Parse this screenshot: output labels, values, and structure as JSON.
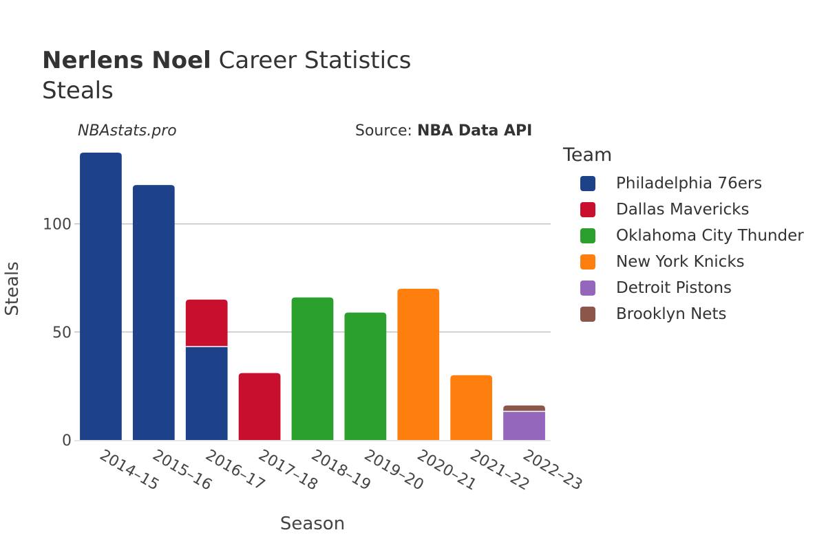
{
  "header": {
    "player_name": "Nerlens Noel",
    "title_rest": "Career Statistics",
    "subtitle": "Steals",
    "watermark": "NBAstats.pro",
    "source_prefix": "Source:",
    "source_name": "NBA Data API"
  },
  "legend": {
    "title": "Team"
  },
  "chart_data": {
    "type": "bar",
    "stacked": true,
    "xlabel": "Season",
    "ylabel": "Steals",
    "ylim": [
      0,
      133
    ],
    "yticks": [
      0,
      50,
      100
    ],
    "grid": true,
    "legend_position": "right",
    "categories": [
      "2014–15",
      "2015–16",
      "2016–17",
      "2017–18",
      "2018–19",
      "2019–20",
      "2020–21",
      "2021–22",
      "2022–23"
    ],
    "series": [
      {
        "name": "Philadelphia 76ers",
        "color": "#1d428a",
        "values": [
          133,
          118,
          43,
          0,
          0,
          0,
          0,
          0,
          0
        ]
      },
      {
        "name": "Dallas Mavericks",
        "color": "#c8102e",
        "values": [
          0,
          0,
          22,
          31,
          0,
          0,
          0,
          0,
          0
        ]
      },
      {
        "name": "Oklahoma City Thunder",
        "color": "#2ca02c",
        "values": [
          0,
          0,
          0,
          0,
          66,
          59,
          0,
          0,
          0
        ]
      },
      {
        "name": "New York Knicks",
        "color": "#ff7f0e",
        "values": [
          0,
          0,
          0,
          0,
          0,
          0,
          70,
          30,
          0
        ]
      },
      {
        "name": "Detroit Pistons",
        "color": "#9467bd",
        "values": [
          0,
          0,
          0,
          0,
          0,
          0,
          0,
          0,
          13
        ]
      },
      {
        "name": "Brooklyn Nets",
        "color": "#8c564b",
        "values": [
          0,
          0,
          0,
          0,
          0,
          0,
          0,
          0,
          3
        ]
      }
    ]
  }
}
